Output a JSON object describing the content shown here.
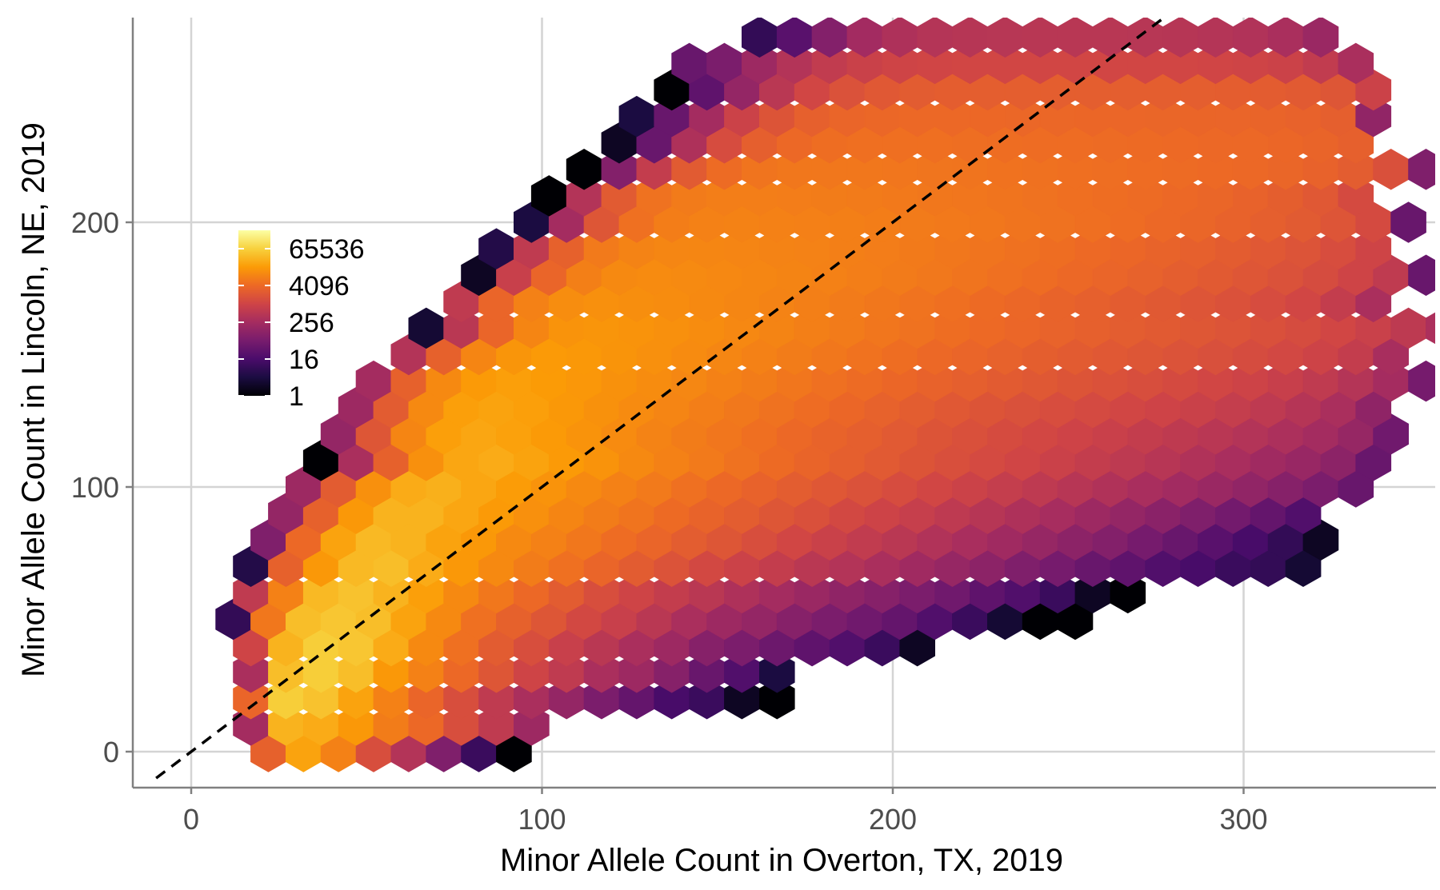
{
  "chart_data": {
    "type": "heatmap",
    "subtype": "hexbin",
    "title": "",
    "xlabel": "Minor Allele Count in Overton, TX, 2019",
    "ylabel": "Minor Allele Count in Lincoln, NE, 2019",
    "xlim": [
      -17,
      355
    ],
    "ylim": [
      -13,
      277
    ],
    "x_ticks": [
      0,
      100,
      200,
      300
    ],
    "y_ticks": [
      0,
      100,
      200
    ],
    "grid": true,
    "reference_line": {
      "style": "dashed",
      "color": "#000000",
      "slope": 1,
      "intercept": 0
    },
    "color_scale": {
      "palette": "inferno",
      "scale": "log",
      "stops": [
        "#000004",
        "#1b0c41",
        "#4a0c6b",
        "#781c6d",
        "#a52c60",
        "#cf4446",
        "#ed6925",
        "#fb9b06",
        "#f7d13d",
        "#fcffa4"
      ],
      "legend_ticks": [
        {
          "label": "65536",
          "value": 65536
        },
        {
          "label": "4096",
          "value": 4096
        },
        {
          "label": "256",
          "value": 256
        },
        {
          "label": "16",
          "value": 16
        },
        {
          "label": "1",
          "value": 1
        }
      ],
      "max_count": 262144,
      "legend_position": "top-left inside"
    },
    "hex_bin_width_x": 10,
    "rows": [
      {
        "y": 0,
        "xmin": 22,
        "xmax": 97,
        "values": [
          3000,
          20000,
          8000,
          1500,
          400,
          80,
          10,
          1
        ]
      },
      {
        "y": 10,
        "xmin": 17,
        "xmax": 97,
        "values": [
          250,
          30000,
          25000,
          15000,
          7000,
          4000,
          1500,
          600,
          200
        ]
      },
      {
        "y": 20,
        "xmin": 17,
        "xmax": 167,
        "values": [
          3500,
          60000,
          45000,
          20000,
          8000,
          3500,
          1500,
          600,
          300,
          150,
          70,
          35,
          15,
          10,
          2,
          1
        ]
      },
      {
        "y": 30,
        "xmin": 17,
        "xmax": 167,
        "values": [
          300,
          40000,
          60000,
          40000,
          15000,
          8000,
          4000,
          2000,
          1000,
          600,
          300,
          200,
          100,
          40,
          20,
          4
        ]
      },
      {
        "y": 40,
        "xmin": 17,
        "xmax": 207,
        "values": [
          1000,
          30000,
          60000,
          50000,
          25000,
          10000,
          5000,
          2500,
          1500,
          800,
          500,
          300,
          200,
          100,
          70,
          45,
          30,
          20,
          10,
          2
        ]
      },
      {
        "y": 50,
        "xmin": 12,
        "xmax": 252,
        "values": [
          8,
          6000,
          40000,
          50000,
          40000,
          20000,
          10000,
          5000,
          3000,
          2000,
          1200,
          800,
          500,
          300,
          200,
          150,
          100,
          70,
          50,
          35,
          20,
          10,
          3,
          1,
          1
        ]
      },
      {
        "y": 60,
        "xmin": 17,
        "xmax": 267,
        "values": [
          600,
          8000,
          35000,
          45000,
          30000,
          18000,
          10000,
          6000,
          4000,
          2500,
          1500,
          1000,
          700,
          500,
          350,
          250,
          180,
          130,
          100,
          70,
          50,
          30,
          20,
          10,
          2,
          1
        ]
      },
      {
        "y": 70,
        "xmin": 17,
        "xmax": 317,
        "values": [
          5,
          3000,
          15000,
          35000,
          40000,
          25000,
          15000,
          10000,
          7000,
          5000,
          3500,
          2500,
          1800,
          1200,
          900,
          700,
          500,
          400,
          300,
          220,
          160,
          120,
          80,
          60,
          40,
          30,
          20,
          15,
          10,
          8,
          3
        ]
      },
      {
        "y": 80,
        "xmin": 22,
        "xmax": 322,
        "values": [
          80,
          4000,
          20000,
          35000,
          30000,
          20000,
          15000,
          10000,
          8000,
          6000,
          4500,
          3500,
          2600,
          2000,
          1500,
          1100,
          850,
          650,
          500,
          380,
          290,
          220,
          160,
          120,
          90,
          60,
          40,
          25,
          15,
          8,
          2
        ]
      },
      {
        "y": 90,
        "xmin": 27,
        "xmax": 317,
        "values": [
          150,
          3000,
          15000,
          30000,
          30000,
          22000,
          16000,
          12000,
          9000,
          7000,
          5500,
          4200,
          3300,
          2600,
          2000,
          1600,
          1200,
          950,
          750,
          580,
          450,
          350,
          270,
          200,
          150,
          110,
          80,
          55,
          35,
          20
        ]
      },
      {
        "y": 100,
        "xmin": 32,
        "xmax": 332,
        "values": [
          200,
          2500,
          12000,
          25000,
          28000,
          22000,
          17000,
          13000,
          10000,
          8000,
          6500,
          5000,
          4000,
          3200,
          2600,
          2100,
          1700,
          1400,
          1100,
          900,
          720,
          580,
          460,
          370,
          290,
          230,
          180,
          140,
          100,
          70,
          40
        ]
      },
      {
        "y": 110,
        "xmin": 37,
        "xmax": 337,
        "values": [
          1,
          300,
          3000,
          12000,
          22000,
          25000,
          20000,
          16000,
          13000,
          10000,
          8000,
          6500,
          5200,
          4200,
          3400,
          2800,
          2300,
          1900,
          1550,
          1280,
          1050,
          860,
          700,
          570,
          460,
          370,
          290,
          220,
          170,
          120,
          40
        ]
      },
      {
        "y": 120,
        "xmin": 42,
        "xmax": 342,
        "values": [
          150,
          2000,
          9000,
          18000,
          22000,
          19000,
          16000,
          13000,
          10500,
          8500,
          7000,
          5800,
          4800,
          4000,
          3300,
          2800,
          2300,
          1900,
          1600,
          1350,
          1150,
          980,
          830,
          700,
          590,
          490,
          400,
          320,
          250,
          160,
          50
        ]
      },
      {
        "y": 130,
        "xmin": 47,
        "xmax": 337,
        "values": [
          200,
          2500,
          10000,
          18000,
          20000,
          18000,
          15000,
          12500,
          10500,
          8800,
          7400,
          6200,
          5200,
          4400,
          3700,
          3100,
          2600,
          2200,
          1900,
          1650,
          1450,
          1280,
          1120,
          980,
          850,
          720,
          580,
          440,
          300,
          130
        ]
      },
      {
        "y": 140,
        "xmin": 52,
        "xmax": 342,
        "values": [
          250,
          3000,
          10000,
          16000,
          18000,
          16500,
          14500,
          12500,
          10800,
          9300,
          8000,
          6900,
          5900,
          5000,
          4300,
          3700,
          3200,
          2800,
          2450,
          2150,
          1900,
          1680,
          1480,
          1300,
          1120,
          950,
          780,
          600,
          420,
          260,
          60
        ]
      },
      {
        "y": 150,
        "xmin": 62,
        "xmax": 337,
        "values": [
          400,
          3000,
          9000,
          14000,
          16000,
          15000,
          13500,
          12000,
          10500,
          9200,
          8000,
          7000,
          6100,
          5300,
          4600,
          4000,
          3500,
          3100,
          2750,
          2450,
          2200,
          1980,
          1780,
          1580,
          1380,
          1170,
          950,
          700,
          280
        ]
      },
      {
        "y": 160,
        "xmin": 67,
        "xmax": 342,
        "values": [
          3,
          500,
          3500,
          9000,
          13000,
          14000,
          13000,
          12000,
          10800,
          9700,
          8600,
          7600,
          6700,
          5900,
          5200,
          4600,
          4100,
          3650,
          3250,
          2900,
          2600,
          2330,
          2080,
          1850,
          1620,
          1380,
          1120,
          840,
          560,
          320,
          60
        ]
      },
      {
        "y": 170,
        "xmin": 77,
        "xmax": 337,
        "values": [
          600,
          3500,
          8000,
          11000,
          12000,
          11500,
          10800,
          10000,
          9200,
          8400,
          7600,
          6800,
          6100,
          5400,
          4800,
          4250,
          3750,
          3300,
          2900,
          2550,
          2230,
          1940,
          1670,
          1400,
          1100,
          700,
          300
        ]
      },
      {
        "y": 180,
        "xmin": 82,
        "xmax": 342,
        "values": [
          2,
          800,
          3500,
          7500,
          10000,
          10500,
          10200,
          9700,
          9200,
          8600,
          8000,
          7400,
          6800,
          6200,
          5600,
          5000,
          4450,
          3950,
          3500,
          3100,
          2720,
          2370,
          2040,
          1720,
          1380,
          1000,
          600,
          40
        ]
      },
      {
        "y": 190,
        "xmin": 87,
        "xmax": 337,
        "values": [
          5,
          600,
          3000,
          6500,
          8500,
          9200,
          9200,
          8900,
          8500,
          8100,
          7600,
          7100,
          6600,
          6100,
          5600,
          5100,
          4600,
          4150,
          3700,
          3300,
          2900,
          2550,
          2200,
          1850,
          1450,
          1000
        ]
      },
      {
        "y": 200,
        "xmin": 97,
        "xmax": 342,
        "values": [
          4,
          250,
          2000,
          5000,
          7200,
          8000,
          8200,
          8000,
          7800,
          7500,
          7200,
          6800,
          6400,
          6000,
          5600,
          5200,
          4800,
          4400,
          4000,
          3600,
          3200,
          2800,
          2400,
          1950,
          1300,
          40
        ]
      },
      {
        "y": 210,
        "xmin": 102,
        "xmax": 337,
        "values": [
          1,
          400,
          2400,
          5200,
          6800,
          7300,
          7300,
          7100,
          6900,
          6700,
          6400,
          6100,
          5800,
          5500,
          5200,
          4900,
          4600,
          4300,
          3950,
          3600,
          3200,
          2750,
          2200,
          1300
        ]
      },
      {
        "y": 220,
        "xmin": 112,
        "xmax": 342,
        "values": [
          1,
          90,
          700,
          2400,
          4300,
          5500,
          6000,
          6100,
          6000,
          5900,
          5700,
          5500,
          5300,
          5100,
          4900,
          4700,
          4500,
          4300,
          4100,
          3900,
          3600,
          3200,
          2600,
          1600,
          80
        ]
      },
      {
        "y": 230,
        "xmin": 122,
        "xmax": 337,
        "values": [
          2,
          40,
          350,
          1400,
          2800,
          4000,
          4600,
          4800,
          4850,
          4800,
          4700,
          4600,
          4500,
          4400,
          4300,
          4200,
          4100,
          4000,
          3900,
          3700,
          3400,
          2900
        ]
      },
      {
        "y": 240,
        "xmin": 127,
        "xmax": 342,
        "values": [
          4,
          40,
          250,
          900,
          1900,
          2900,
          3500,
          3800,
          3900,
          3900,
          3850,
          3800,
          3750,
          3700,
          3650,
          3600,
          3550,
          3500,
          3400,
          3200,
          2800,
          140
        ]
      },
      {
        "y": 250,
        "xmin": 137,
        "xmax": 337,
        "values": [
          1,
          30,
          150,
          500,
          1100,
          1700,
          2200,
          2500,
          2650,
          2700,
          2700,
          2700,
          2700,
          2700,
          2700,
          2700,
          2650,
          2550,
          2350,
          2000,
          900
        ]
      },
      {
        "y": 260,
        "xmin": 142,
        "xmax": 332,
        "values": [
          40,
          70,
          200,
          400,
          650,
          850,
          1000,
          1050,
          1100,
          1100,
          1100,
          1100,
          1100,
          1100,
          1100,
          1050,
          1000,
          900,
          650,
          300
        ]
      },
      {
        "y": 270,
        "xmin": 162,
        "xmax": 327,
        "values": [
          8,
          25,
          90,
          240,
          350,
          420,
          450,
          470,
          480,
          480,
          480,
          470,
          450,
          420,
          380,
          300,
          180
        ]
      }
    ]
  }
}
